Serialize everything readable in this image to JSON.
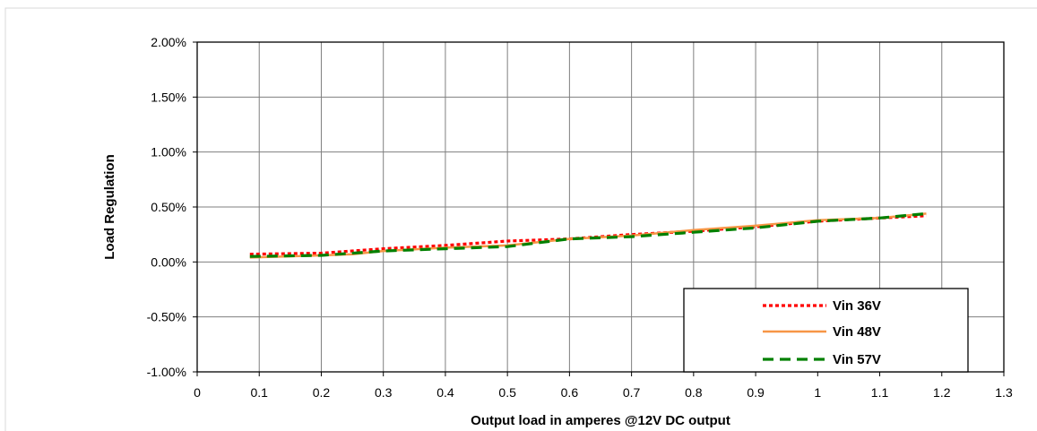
{
  "chart_data": {
    "type": "line",
    "xlabel": "Output load in amperes @12V DC output",
    "ylabel": "Load Regulation",
    "xlim": [
      0,
      1.3
    ],
    "ylim": [
      -1.0,
      2.0
    ],
    "x_ticks": [
      "0",
      "0.1",
      "0.2",
      "0.3",
      "0.4",
      "0.5",
      "0.6",
      "0.7",
      "0.8",
      "0.9",
      "1",
      "1.1",
      "1.2",
      "1.3"
    ],
    "y_ticks": [
      "2.00%",
      "1.50%",
      "1.00%",
      "0.50%",
      "0.00%",
      "-0.50%",
      "-1.00%"
    ],
    "y_tick_values": [
      2.0,
      1.5,
      1.0,
      0.5,
      0.0,
      -0.5,
      -1.0
    ],
    "grid": true,
    "legend_position": "bottom-right",
    "series": [
      {
        "name": "Vin 36V",
        "color": "#ff0000",
        "style": "dotted",
        "x": [
          0.085,
          0.2,
          0.3,
          0.4,
          0.5,
          0.6,
          0.7,
          0.8,
          0.9,
          1.0,
          1.1,
          1.175
        ],
        "y": [
          0.07,
          0.08,
          0.12,
          0.15,
          0.19,
          0.21,
          0.25,
          0.28,
          0.32,
          0.37,
          0.4,
          0.42
        ]
      },
      {
        "name": "Vin 48V",
        "color": "#f79646",
        "style": "solid",
        "x": [
          0.085,
          0.2,
          0.25,
          0.3,
          0.4,
          0.5,
          0.6,
          0.7,
          0.8,
          0.9,
          1.0,
          1.1,
          1.175
        ],
        "y": [
          0.04,
          0.06,
          0.07,
          0.1,
          0.13,
          0.15,
          0.21,
          0.24,
          0.29,
          0.33,
          0.38,
          0.4,
          0.44
        ]
      },
      {
        "name": "Vin 57V",
        "color": "#008000",
        "style": "dashed",
        "x": [
          0.085,
          0.2,
          0.3,
          0.4,
          0.5,
          0.6,
          0.7,
          0.8,
          0.9,
          1.0,
          1.1,
          1.175
        ],
        "y": [
          0.05,
          0.06,
          0.1,
          0.12,
          0.14,
          0.21,
          0.23,
          0.27,
          0.31,
          0.37,
          0.4,
          0.44
        ]
      }
    ]
  }
}
